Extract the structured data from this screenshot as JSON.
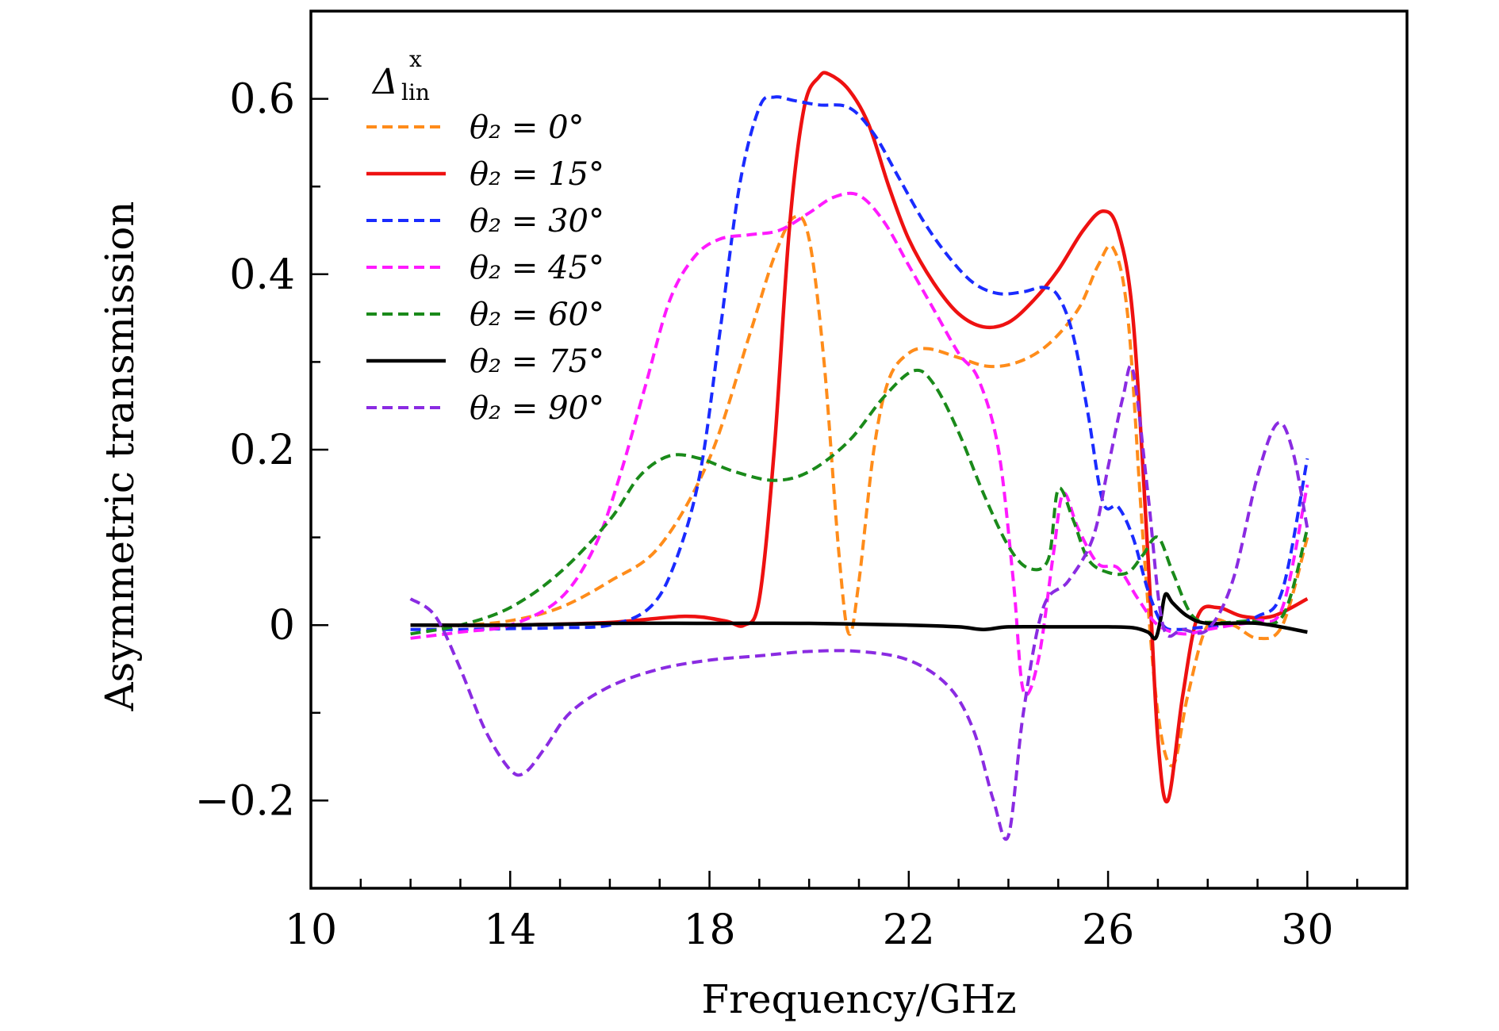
{
  "chart_data": {
    "type": "line",
    "title": "",
    "xlabel": "Frequency/GHz",
    "ylabel": "Asymmetric transmission",
    "xlim": [
      10,
      32
    ],
    "ylim": [
      -0.3,
      0.7
    ],
    "xticks": [
      10,
      14,
      18,
      22,
      26,
      30
    ],
    "xtick_labels": [
      "10",
      "14",
      "18",
      "22",
      "26",
      "30"
    ],
    "yticks": [
      -0.2,
      0,
      0.2,
      0.4,
      0.6
    ],
    "ytick_labels": [
      "−0.2",
      "0",
      "0.2",
      "0.4",
      "0.6"
    ],
    "grid": false,
    "legend_position": "top-left",
    "legend_title": {
      "symbol": "Δ",
      "sub": "lin",
      "sup": "x"
    },
    "series": [
      {
        "name": "θ₂ = 0°",
        "color": "#ff8c1a",
        "dash": "dashed",
        "x": [
          12,
          13,
          14,
          15,
          16,
          17,
          18,
          18.8,
          19.3,
          19.7,
          20.0,
          20.3,
          20.6,
          20.8,
          21.0,
          21.3,
          21.6,
          22.0,
          22.4,
          23.0,
          23.6,
          24.2,
          24.8,
          25.4,
          25.8,
          26.1,
          26.4,
          26.7,
          27.0,
          27.3,
          27.6,
          28.0,
          28.5,
          29.0,
          29.5,
          30.0
        ],
        "values": [
          0.0,
          0.0,
          0.005,
          0.02,
          0.05,
          0.09,
          0.19,
          0.33,
          0.42,
          0.465,
          0.44,
          0.3,
          0.08,
          -0.01,
          0.05,
          0.2,
          0.28,
          0.31,
          0.315,
          0.305,
          0.295,
          0.3,
          0.32,
          0.36,
          0.41,
          0.43,
          0.35,
          0.1,
          -0.1,
          -0.16,
          -0.08,
          0.0,
          0.0,
          -0.015,
          0.0,
          0.1
        ]
      },
      {
        "name": "θ₂ = 15°",
        "color": "#ee1111",
        "dash": "solid",
        "x": [
          12,
          14,
          16,
          17.5,
          18.3,
          18.7,
          19.0,
          19.3,
          19.6,
          19.9,
          20.2,
          20.4,
          20.8,
          21.2,
          21.6,
          22.0,
          22.5,
          23.0,
          23.5,
          24.0,
          24.5,
          25.0,
          25.5,
          25.9,
          26.2,
          26.5,
          26.8,
          27.0,
          27.2,
          27.5,
          27.8,
          28.2,
          28.7,
          29.3,
          30.0
        ],
        "values": [
          0.0,
          0.0,
          0.003,
          0.01,
          0.005,
          0.0,
          0.03,
          0.2,
          0.45,
          0.59,
          0.625,
          0.628,
          0.61,
          0.57,
          0.5,
          0.44,
          0.39,
          0.355,
          0.34,
          0.345,
          0.37,
          0.405,
          0.45,
          0.472,
          0.45,
          0.35,
          0.08,
          -0.13,
          -0.2,
          -0.08,
          0.01,
          0.02,
          0.01,
          0.01,
          0.03
        ]
      },
      {
        "name": "θ₂ = 30°",
        "color": "#1a2bff",
        "dash": "dashed",
        "x": [
          12,
          13,
          14,
          15,
          16,
          16.8,
          17.3,
          17.8,
          18.2,
          18.6,
          19.0,
          19.3,
          19.7,
          20.2,
          20.8,
          21.3,
          21.8,
          22.3,
          22.8,
          23.3,
          23.8,
          24.3,
          24.7,
          25.0,
          25.3,
          25.6,
          25.9,
          26.2,
          26.5,
          26.8,
          27.1,
          27.4,
          27.8,
          28.3,
          29.0,
          29.5,
          30.0
        ],
        "values": [
          -0.005,
          -0.005,
          -0.004,
          -0.003,
          0.0,
          0.02,
          0.07,
          0.17,
          0.33,
          0.5,
          0.59,
          0.602,
          0.598,
          0.593,
          0.59,
          0.56,
          0.51,
          0.46,
          0.42,
          0.39,
          0.378,
          0.38,
          0.385,
          0.375,
          0.33,
          0.24,
          0.14,
          0.135,
          0.1,
          0.04,
          0.0,
          -0.005,
          -0.003,
          0.0,
          0.01,
          0.04,
          0.19
        ]
      },
      {
        "name": "θ₂ = 45°",
        "color": "#ff1aff",
        "dash": "dashed",
        "x": [
          12,
          13,
          14,
          15,
          15.7,
          16.2,
          16.7,
          17.2,
          17.7,
          18.2,
          18.8,
          19.4,
          20.0,
          20.5,
          21.0,
          21.5,
          22.0,
          22.5,
          23.0,
          23.4,
          23.8,
          24.1,
          24.3,
          24.6,
          24.9,
          25.1,
          25.4,
          25.8,
          26.2,
          26.6,
          27.0,
          27.5,
          28.0,
          28.5,
          29.0,
          29.5,
          30.0
        ],
        "values": [
          -0.015,
          -0.008,
          0.0,
          0.03,
          0.09,
          0.17,
          0.27,
          0.37,
          0.42,
          0.44,
          0.445,
          0.45,
          0.47,
          0.488,
          0.49,
          0.46,
          0.41,
          0.36,
          0.31,
          0.28,
          0.2,
          0.05,
          -0.075,
          -0.04,
          0.08,
          0.15,
          0.11,
          0.07,
          0.065,
          0.03,
          0.0,
          -0.01,
          -0.005,
          0.0,
          0.005,
          0.02,
          0.16
        ]
      },
      {
        "name": "θ₂ = 60°",
        "color": "#1a8a1a",
        "dash": "dashed",
        "x": [
          12,
          13,
          14,
          15,
          16,
          16.6,
          17.2,
          17.8,
          18.5,
          19.3,
          20.0,
          20.8,
          21.5,
          22.1,
          22.5,
          23.0,
          23.5,
          24.0,
          24.4,
          24.8,
          25.0,
          25.3,
          25.6,
          26.0,
          26.4,
          26.7,
          27.0,
          27.3,
          27.7,
          28.2,
          28.8,
          29.5,
          30.0
        ],
        "values": [
          -0.01,
          0.0,
          0.02,
          0.06,
          0.12,
          0.17,
          0.193,
          0.19,
          0.175,
          0.165,
          0.175,
          0.21,
          0.26,
          0.29,
          0.275,
          0.22,
          0.15,
          0.09,
          0.065,
          0.075,
          0.155,
          0.12,
          0.075,
          0.06,
          0.06,
          0.08,
          0.1,
          0.06,
          0.01,
          0.003,
          0.005,
          0.01,
          0.11
        ]
      },
      {
        "name": "θ₂ = 75°",
        "color": "#000000",
        "dash": "solid",
        "x": [
          12,
          14,
          16,
          18,
          20,
          22,
          23.0,
          23.5,
          24.0,
          25.0,
          26.0,
          26.5,
          26.8,
          26.95,
          27.05,
          27.15,
          27.3,
          27.6,
          28.0,
          29.0,
          30.0
        ],
        "values": [
          0.0,
          0.0,
          0.002,
          0.002,
          0.002,
          0.0,
          -0.002,
          -0.005,
          -0.002,
          -0.002,
          -0.002,
          -0.003,
          -0.008,
          -0.015,
          0.005,
          0.035,
          0.025,
          0.01,
          0.002,
          0.002,
          -0.008
        ]
      },
      {
        "name": "θ₂ = 90°",
        "color": "#8a2be2",
        "dash": "dashed",
        "x": [
          12,
          12.5,
          13.0,
          13.5,
          14.0,
          14.3,
          14.7,
          15.2,
          16.0,
          17.0,
          18.0,
          19.0,
          20.0,
          21.0,
          22.0,
          22.8,
          23.3,
          23.7,
          24.0,
          24.3,
          24.7,
          25.2,
          25.7,
          26.0,
          26.3,
          26.5,
          26.8,
          27.1,
          27.5,
          28.0,
          28.5,
          29.0,
          29.4,
          29.7,
          30.0
        ],
        "values": [
          0.03,
          0.01,
          -0.05,
          -0.12,
          -0.165,
          -0.168,
          -0.14,
          -0.1,
          -0.07,
          -0.05,
          -0.04,
          -0.035,
          -0.03,
          -0.03,
          -0.04,
          -0.07,
          -0.12,
          -0.2,
          -0.24,
          -0.1,
          0.02,
          0.05,
          0.1,
          0.18,
          0.26,
          0.29,
          0.15,
          0.0,
          -0.005,
          -0.005,
          0.05,
          0.17,
          0.23,
          0.2,
          0.11
        ]
      }
    ]
  }
}
